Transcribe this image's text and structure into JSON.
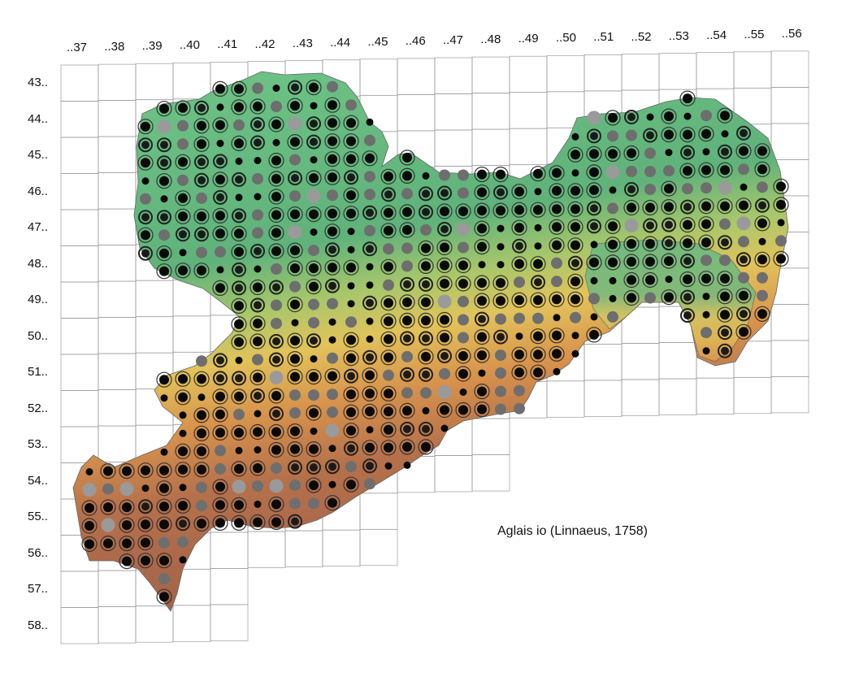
{
  "map": {
    "species": "Aglais io (Linnaeus, 1758)",
    "column_labels": [
      "..37",
      "..38",
      "..39",
      "..40",
      "..41",
      "..42",
      "..43",
      "..44",
      "..45",
      "..46",
      "..47",
      "..48",
      "..49",
      "..50",
      "..51",
      "..52",
      "..53",
      "..54",
      "..55",
      "..56"
    ],
    "row_labels": [
      "43..",
      "44..",
      "45..",
      "46..",
      "47..",
      "48..",
      "49..",
      "50..",
      "51..",
      "52..",
      "53..",
      "54..",
      "55..",
      "56..",
      "57..",
      "58.."
    ],
    "legend_symbols": {
      "black_dot": "#0a0a0a",
      "grey_dot": "#6e6e6e",
      "light_grey_dot": "#9a9a9a",
      "ringed_dot": "#1a1a1a"
    },
    "colors": {
      "lowland_green": "#6fbf86",
      "midland_yellow": "#e4c35a",
      "upland_orange": "#d98a4a",
      "mountain_brown": "#a86a4c",
      "peak_grey": "#b0a4a0",
      "grid_line": "#9a9a9a"
    }
  }
}
